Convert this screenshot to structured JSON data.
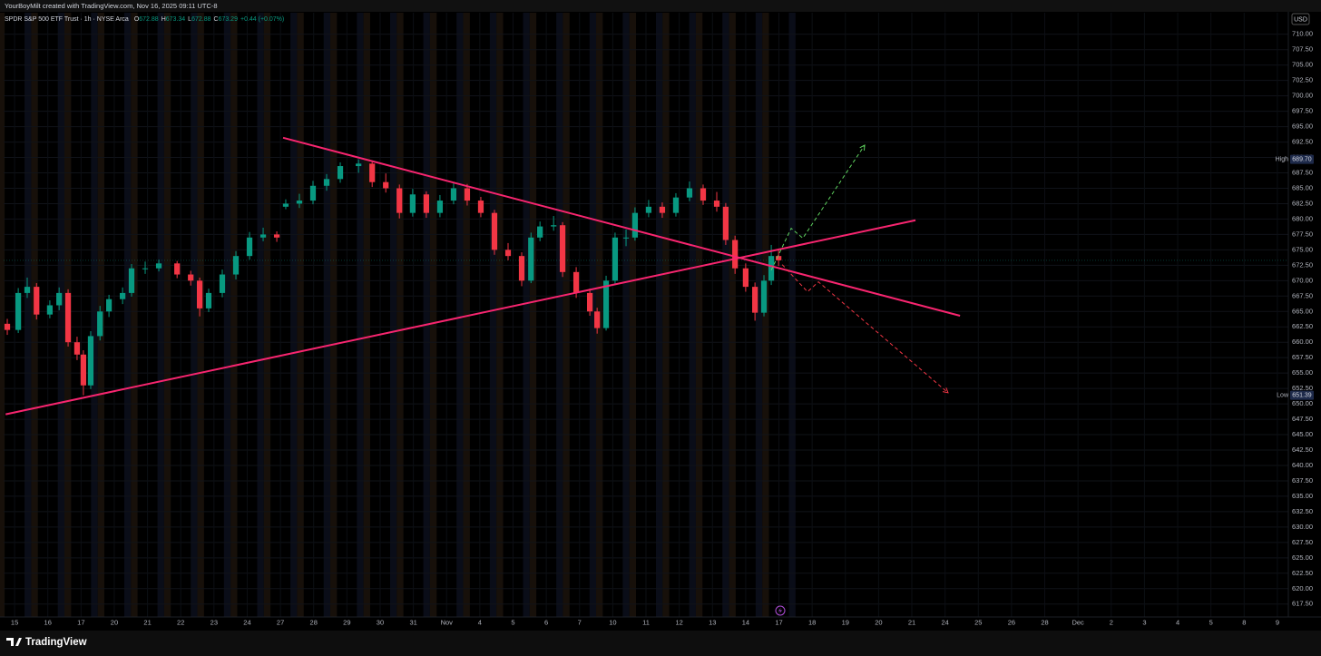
{
  "header": {
    "watermark": "YourBoyMilt created with TradingView.com, Nov 16, 2025 09:11 UTC-8",
    "currency_button": "USD",
    "footer_brand": "TradingView"
  },
  "chart_data": {
    "type": "candlestick",
    "title": "SPDR S&P 500 ETF Trust · 1h · NYSE Arca",
    "ohlc_legend": {
      "labels": [
        "O",
        "H",
        "L",
        "C"
      ],
      "values": [
        672.88,
        673.34,
        672.88,
        673.29
      ],
      "change": "+0.44 (+0.07%)"
    },
    "x": [
      -0.22,
      0.11,
      0.38,
      0.66,
      1.06,
      1.34,
      1.61,
      1.88,
      2.07,
      2.29,
      2.57,
      2.84,
      3.25,
      3.52,
      3.93,
      4.34,
      4.89,
      5.3,
      5.57,
      5.84,
      6.25,
      6.66,
      7.07,
      7.48,
      7.89,
      8.16,
      8.57,
      8.98,
      9.39,
      9.8,
      10.35,
      10.76,
      11.17,
      11.58,
      11.98,
      12.39,
      12.8,
      13.21,
      13.62,
      14.03,
      14.44,
      14.85,
      15.26,
      15.54,
      15.81,
      16.22,
      16.49,
      16.9,
      17.31,
      17.53,
      17.8,
      18.07,
      18.4,
      18.67,
      19.08,
      19.49,
      19.9,
      20.31,
      20.72,
      21.13,
      21.4,
      21.68,
      22.0,
      22.28,
      22.55,
      22.77,
      22.99
    ],
    "open": [
      663,
      662,
      668,
      669,
      664.5,
      666,
      668,
      660,
      658,
      653,
      661,
      665,
      667,
      668,
      672,
      672,
      672.8,
      671,
      670,
      665.5,
      668,
      671,
      674,
      677,
      677.5,
      682,
      682.5,
      683,
      685.4,
      686.5,
      688.6,
      689,
      686,
      685,
      681,
      684,
      681,
      683,
      685,
      683,
      681,
      675,
      674,
      670,
      677,
      678.8,
      679,
      671.4,
      668,
      665,
      662.3,
      670,
      677,
      677,
      681,
      682,
      681,
      683.5,
      685,
      683,
      682,
      676.6,
      672,
      669,
      664.8,
      670,
      674
    ],
    "high": [
      663.8,
      668.8,
      670.5,
      669.6,
      666.8,
      668.9,
      668.6,
      660.9,
      658.7,
      661.8,
      665.9,
      667.7,
      668.9,
      672.7,
      673.1,
      673.4,
      673.2,
      671.6,
      670.5,
      668.7,
      671.8,
      674.8,
      677.9,
      678.6,
      678,
      683.2,
      684.1,
      686.2,
      687.3,
      689.2,
      689.7,
      689.4,
      687.4,
      685.6,
      684.9,
      684.5,
      683.9,
      685.8,
      685.7,
      683.6,
      681.5,
      676.1,
      674.6,
      677.8,
      679.6,
      680.5,
      679.5,
      672.2,
      668.7,
      665.6,
      670.8,
      677.8,
      678.3,
      681.9,
      683.1,
      682.7,
      684.2,
      686.1,
      685.6,
      684.4,
      682.6,
      677.3,
      672.8,
      669.7,
      670.9,
      675.8,
      675.2
    ],
    "low": [
      661.2,
      661.5,
      667.2,
      663.7,
      663.9,
      665.2,
      659.3,
      657.1,
      651.39,
      652.4,
      660.3,
      664.1,
      666.2,
      667.4,
      671.1,
      671.5,
      670.4,
      669.2,
      664.2,
      664.9,
      667.3,
      670.2,
      673.4,
      676.4,
      676.3,
      681.6,
      681.8,
      682.4,
      684.6,
      685.9,
      687.5,
      685.2,
      684.3,
      680.1,
      680.4,
      680.2,
      680.3,
      682.4,
      682.2,
      680.3,
      674.2,
      673.3,
      669.1,
      669.6,
      676.4,
      678.1,
      670.6,
      667.2,
      664.3,
      661.4,
      661.9,
      669.4,
      675.6,
      676.5,
      680.3,
      680.2,
      680.4,
      682.9,
      682.3,
      681.2,
      675.8,
      671.1,
      668.2,
      663.5,
      664.2,
      669.3,
      672.4
    ],
    "close": [
      662,
      668,
      669,
      664.5,
      666,
      668,
      660,
      658,
      653,
      661,
      665,
      667,
      668,
      672,
      672,
      672.8,
      671,
      670,
      665.5,
      668,
      671,
      674,
      677,
      677.5,
      677,
      682.5,
      683,
      685.4,
      686.5,
      688.6,
      689,
      686,
      685,
      681,
      684,
      681,
      683,
      685,
      683,
      681,
      675,
      674,
      670,
      677,
      678.8,
      679,
      671.4,
      668,
      665,
      662.3,
      670,
      677,
      677,
      681,
      682,
      681,
      683.5,
      685,
      683,
      682,
      676.6,
      672,
      669,
      664.8,
      670,
      674,
      673.3
    ],
    "up_color": "#089981",
    "down_color": "#f23645",
    "grid": true,
    "xlim": [
      -0.33,
      38.33
    ],
    "xticks": [
      {
        "value": 0,
        "label": "15"
      },
      {
        "value": 1,
        "label": "16"
      },
      {
        "value": 2,
        "label": "17"
      },
      {
        "value": 3,
        "label": "20"
      },
      {
        "value": 4,
        "label": "21"
      },
      {
        "value": 5,
        "label": "22"
      },
      {
        "value": 6,
        "label": "23"
      },
      {
        "value": 7,
        "label": "24"
      },
      {
        "value": 8,
        "label": "27"
      },
      {
        "value": 9,
        "label": "28"
      },
      {
        "value": 10,
        "label": "29"
      },
      {
        "value": 11,
        "label": "30"
      },
      {
        "value": 12,
        "label": "31"
      },
      {
        "value": 13,
        "label": "Nov"
      },
      {
        "value": 14,
        "label": "4"
      },
      {
        "value": 15,
        "label": "5"
      },
      {
        "value": 16,
        "label": "6"
      },
      {
        "value": 17,
        "label": "7"
      },
      {
        "value": 18,
        "label": "10"
      },
      {
        "value": 19,
        "label": "11"
      },
      {
        "value": 20,
        "label": "12"
      },
      {
        "value": 21,
        "label": "13"
      },
      {
        "value": 22,
        "label": "14"
      },
      {
        "value": 23,
        "label": "17"
      },
      {
        "value": 24,
        "label": "18"
      },
      {
        "value": 25,
        "label": "19"
      },
      {
        "value": 26,
        "label": "20"
      },
      {
        "value": 27,
        "label": "21"
      },
      {
        "value": 28,
        "label": "24"
      },
      {
        "value": 29,
        "label": "25"
      },
      {
        "value": 30,
        "label": "26"
      },
      {
        "value": 31,
        "label": "28"
      },
      {
        "value": 32,
        "label": "Dec"
      },
      {
        "value": 33,
        "label": "2"
      },
      {
        "value": 34,
        "label": "3"
      },
      {
        "value": 35,
        "label": "4"
      },
      {
        "value": 36,
        "label": "5"
      },
      {
        "value": 37,
        "label": "8"
      },
      {
        "value": 38,
        "label": "9"
      }
    ],
    "ylim": [
      615.4,
      713.5
    ],
    "yticks": [
      {
        "value": 617.5,
        "label": "617.50"
      },
      {
        "value": 620,
        "label": "620.00"
      },
      {
        "value": 622.5,
        "label": "622.50"
      },
      {
        "value": 625,
        "label": "625.00"
      },
      {
        "value": 627.5,
        "label": "627.50"
      },
      {
        "value": 630,
        "label": "630.00"
      },
      {
        "value": 632.5,
        "label": "632.50"
      },
      {
        "value": 635,
        "label": "635.00"
      },
      {
        "value": 637.5,
        "label": "637.50"
      },
      {
        "value": 640,
        "label": "640.00"
      },
      {
        "value": 642.5,
        "label": "642.50"
      },
      {
        "value": 645,
        "label": "645.00"
      },
      {
        "value": 647.5,
        "label": "647.50"
      },
      {
        "value": 650,
        "label": "650.00"
      },
      {
        "value": 652.5,
        "label": "652.50"
      },
      {
        "value": 655,
        "label": "655.00"
      },
      {
        "value": 657.5,
        "label": "657.50"
      },
      {
        "value": 660,
        "label": "660.00"
      },
      {
        "value": 662.5,
        "label": "662.50"
      },
      {
        "value": 665,
        "label": "665.00"
      },
      {
        "value": 667.5,
        "label": "667.50"
      },
      {
        "value": 670,
        "label": "670.00"
      },
      {
        "value": 672.5,
        "label": "672.50"
      },
      {
        "value": 675,
        "label": "675.00"
      },
      {
        "value": 677.5,
        "label": "677.50"
      },
      {
        "value": 680,
        "label": "680.00"
      },
      {
        "value": 682.5,
        "label": "682.50"
      },
      {
        "value": 685,
        "label": "685.00"
      },
      {
        "value": 687.5,
        "label": "687.50"
      },
      {
        "value": 690,
        "label": "690.00"
      },
      {
        "value": 692.5,
        "label": "692.50"
      },
      {
        "value": 695,
        "label": "695.00"
      },
      {
        "value": 697.5,
        "label": "697.50"
      },
      {
        "value": 700,
        "label": "700.00"
      },
      {
        "value": 702.5,
        "label": "702.50"
      },
      {
        "value": 705,
        "label": "705.00"
      },
      {
        "value": 707.5,
        "label": "707.50"
      },
      {
        "value": 710,
        "label": "710.00"
      }
    ],
    "last_price": 673.29,
    "high_marker": {
      "label": "High",
      "value": 689.7,
      "value_label": "689.70"
    },
    "low_marker": {
      "label": "Low",
      "value": 651.39
    },
    "trendlines": [
      {
        "color": "#f7256f",
        "x": [
          8.08,
          28.45
        ],
        "y": [
          693.2,
          664.3
        ]
      },
      {
        "color": "#f7256f",
        "x": [
          -0.27,
          27.11
        ],
        "y": [
          648.3,
          679.8
        ]
      }
    ],
    "projections": [
      {
        "color": "#5fd35f",
        "x": [
          22.77,
          23.37,
          23.72,
          25.58
        ],
        "y": [
          671.7,
          678.5,
          676.9,
          692.0
        ]
      },
      {
        "color": "#f23645",
        "x": [
          23.1,
          23.86,
          24.19,
          28.09
        ],
        "y": [
          672.6,
          668.2,
          669.8,
          651.8
        ]
      }
    ]
  }
}
